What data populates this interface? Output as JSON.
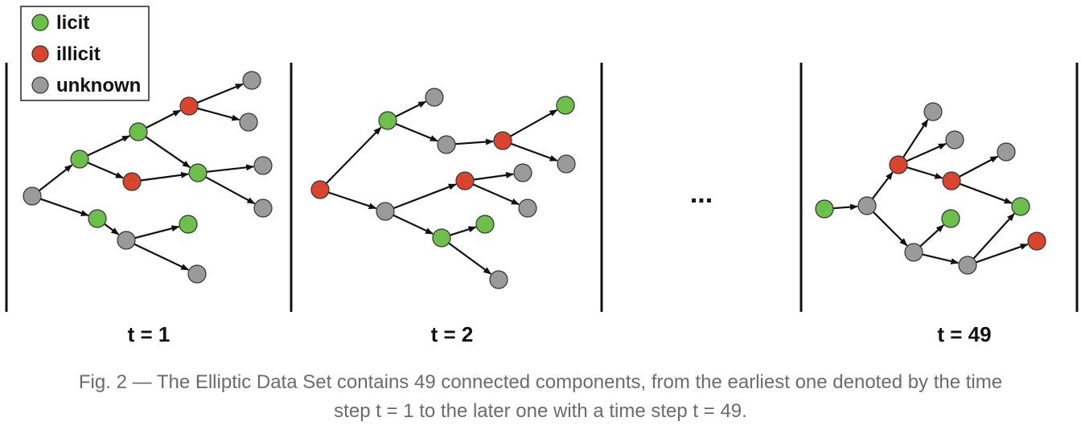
{
  "legend": {
    "items": [
      {
        "key": "licit",
        "label": "licit",
        "color": "#6dbf4b"
      },
      {
        "key": "illicit",
        "label": "illicit",
        "color": "#d9442f"
      },
      {
        "key": "unknown",
        "label": "unknown",
        "color": "#9a9a9a"
      }
    ]
  },
  "panels": [
    {
      "label": "t = 1"
    },
    {
      "label": "t = 2"
    },
    {
      "label": "t = 49"
    }
  ],
  "ellipsis": "...",
  "caption": {
    "line1": "Fig. 2 — The Elliptic Data Set contains 49 connected components, from the earliest one denoted by the time",
    "line2": "step t = 1 to the later one with a time step t = 49."
  }
}
